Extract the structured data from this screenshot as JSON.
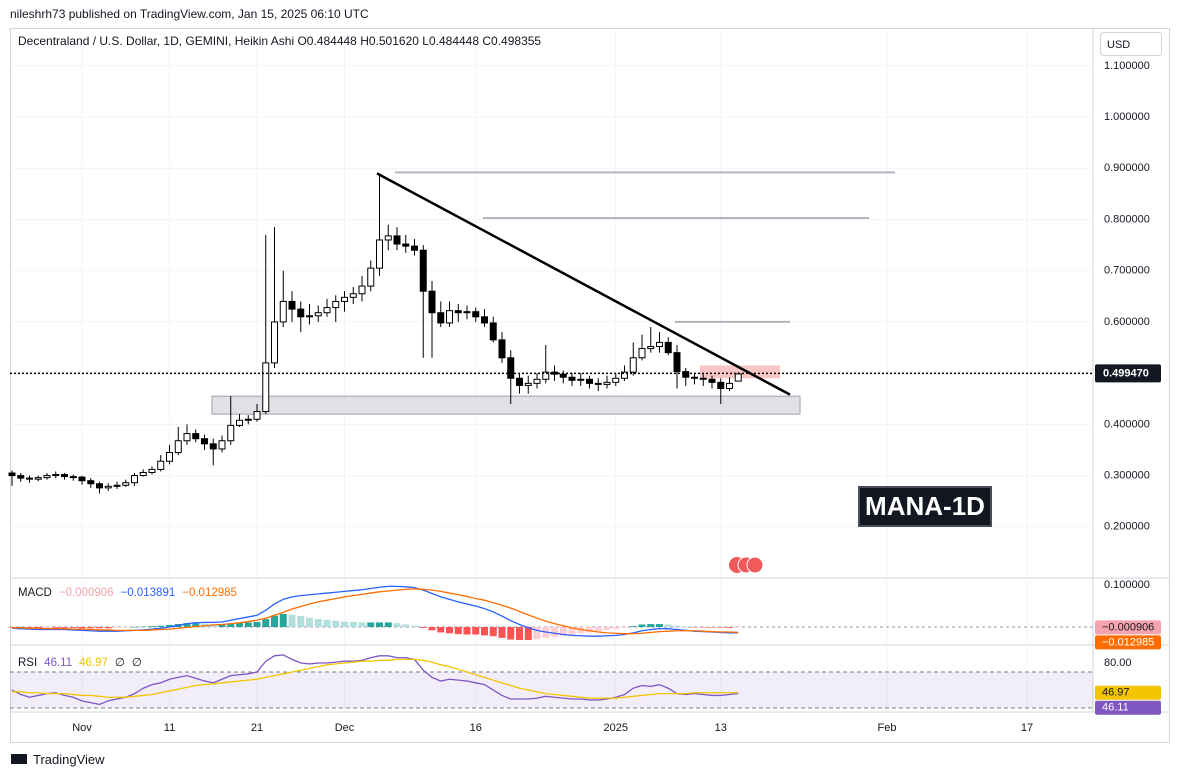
{
  "header": {
    "publisher": "nileshrh73 published on TradingView.com, Jan 15, 2025 06:10 UTC",
    "currency": "USD",
    "watermark": "MANA-1D",
    "brand": "TradingView"
  },
  "chart_data": [
    {
      "type": "candlestick",
      "title": "Decentraland / U.S. Dollar, 1D, GEMINI, Heikin Ashi",
      "header_labels": [
        "O",
        "H",
        "L",
        "C"
      ],
      "header_values": [
        0.484448,
        {
          "value": 0.50162,
          "label": "0.501620"
        },
        0.484448,
        0.498355
      ],
      "categories": [
        null,
        null,
        null,
        null,
        null,
        null,
        null,
        null,
        "Nov",
        null,
        null,
        null,
        null,
        null,
        null,
        null,
        null,
        null,
        "11",
        null,
        null,
        null,
        null,
        null,
        null,
        null,
        null,
        null,
        "21",
        null,
        null,
        null,
        null,
        null,
        null,
        null,
        null,
        null,
        "Dec",
        null,
        null,
        null,
        null,
        null,
        null,
        null,
        null,
        null,
        null,
        null,
        null,
        null,
        null,
        "16",
        null,
        null,
        null,
        null,
        null,
        null,
        null,
        null,
        null,
        null,
        null,
        null,
        null,
        null,
        null,
        "2025",
        null,
        null,
        null,
        null,
        null,
        null,
        null,
        null,
        null,
        null,
        null,
        "13",
        null,
        null,
        null,
        null,
        null,
        null,
        null,
        null,
        null,
        null,
        null,
        null,
        null,
        null,
        null,
        null,
        null,
        null,
        "Feb",
        null,
        null,
        null,
        null,
        null,
        null,
        null,
        null,
        null,
        null,
        null,
        null,
        null,
        null,
        null,
        "17",
        null,
        null,
        null,
        null,
        null,
        null,
        null
      ],
      "open": [
        0.305,
        0.3,
        0.295,
        0.293,
        0.296,
        0.3,
        0.302,
        0.298,
        0.297,
        0.29,
        0.284,
        0.276,
        0.279,
        0.281,
        0.286,
        0.3,
        0.306,
        0.312,
        0.328,
        0.345,
        0.368,
        0.382,
        0.372,
        0.362,
        0.352,
        0.368,
        0.398,
        0.408,
        0.41,
        0.425,
        0.52,
        0.6,
        0.64,
        0.625,
        0.61,
        0.612,
        0.618,
        0.628,
        0.64,
        0.648,
        0.655,
        0.67,
        0.705,
        0.76,
        0.768,
        0.752,
        0.748,
        0.74,
        0.66,
        0.618,
        0.598,
        0.622,
        0.618,
        0.62,
        0.61,
        0.598,
        0.565,
        0.53,
        0.49,
        0.476,
        0.48,
        0.488,
        0.502,
        0.498,
        0.492,
        0.486,
        0.488,
        0.48,
        0.478,
        0.482,
        0.49,
        0.502,
        0.53,
        0.548,
        0.552,
        0.56,
        0.54,
        0.503,
        0.492,
        0.49,
        0.488,
        0.482,
        0.47,
        0.484448,
        null,
        null,
        null,
        null,
        null,
        null,
        null,
        null,
        null,
        null,
        null,
        null,
        null,
        null,
        null,
        null,
        null,
        null,
        null,
        null,
        null,
        null,
        null,
        null,
        null,
        null,
        null,
        null,
        null,
        null,
        null,
        null,
        null,
        null,
        null,
        null,
        null,
        null,
        null,
        null
      ],
      "high": [
        0.31,
        0.305,
        0.3,
        0.3,
        0.305,
        0.308,
        0.305,
        0.302,
        0.3,
        0.295,
        0.288,
        0.285,
        0.288,
        0.292,
        0.305,
        0.312,
        0.318,
        0.34,
        0.36,
        0.395,
        0.4,
        0.39,
        0.38,
        0.372,
        0.378,
        0.455,
        0.42,
        0.418,
        0.44,
        0.77,
        0.785,
        0.7,
        0.66,
        0.64,
        0.635,
        0.632,
        0.645,
        0.652,
        0.66,
        0.668,
        0.69,
        0.72,
        0.89,
        0.79,
        0.785,
        0.77,
        0.762,
        0.75,
        0.68,
        0.64,
        0.64,
        0.635,
        0.632,
        0.628,
        0.625,
        0.61,
        0.58,
        0.545,
        0.5,
        0.495,
        0.5,
        0.555,
        0.515,
        0.505,
        0.5,
        0.5,
        0.495,
        0.49,
        0.495,
        0.5,
        0.515,
        0.56,
        0.575,
        0.59,
        0.58,
        0.57,
        0.555,
        0.51,
        0.5,
        0.498,
        0.495,
        0.49,
        0.492,
        0.50162,
        null,
        null,
        null,
        null,
        null,
        null,
        null,
        null,
        null,
        null,
        null,
        null,
        null,
        null,
        null,
        null,
        null,
        null,
        null,
        null,
        null,
        null,
        null,
        null,
        null,
        null,
        null,
        null,
        null,
        null,
        null,
        null,
        null,
        null,
        null,
        null,
        null,
        null,
        null,
        null
      ],
      "low": [
        0.28,
        0.288,
        0.286,
        0.289,
        0.292,
        0.295,
        0.292,
        0.29,
        0.282,
        0.276,
        0.265,
        0.27,
        0.274,
        0.278,
        0.28,
        0.298,
        0.302,
        0.308,
        0.322,
        0.34,
        0.36,
        0.365,
        0.35,
        0.32,
        0.345,
        0.36,
        0.395,
        0.4,
        0.405,
        0.42,
        0.51,
        0.59,
        0.6,
        0.58,
        0.595,
        0.6,
        0.61,
        0.6,
        0.62,
        0.635,
        0.64,
        0.66,
        0.69,
        0.74,
        0.74,
        0.735,
        0.73,
        0.53,
        0.53,
        0.59,
        0.59,
        0.6,
        0.605,
        0.6,
        0.59,
        0.56,
        0.52,
        0.44,
        0.46,
        0.46,
        0.47,
        0.48,
        0.485,
        0.48,
        0.475,
        0.475,
        0.47,
        0.465,
        0.47,
        0.475,
        0.485,
        0.495,
        0.525,
        0.54,
        0.54,
        0.535,
        0.47,
        0.475,
        0.478,
        0.475,
        0.47,
        0.44,
        0.465,
        0.484448,
        null,
        null,
        null,
        null,
        null,
        null,
        null,
        null,
        null,
        null,
        null,
        null,
        null,
        null,
        null,
        null,
        null,
        null,
        null,
        null,
        null,
        null,
        null,
        null,
        null,
        null,
        null,
        null,
        null,
        null,
        null,
        null,
        null,
        null,
        null,
        null,
        null,
        null,
        null,
        null
      ],
      "close": [
        0.3,
        0.295,
        0.293,
        0.296,
        0.3,
        0.302,
        0.298,
        0.297,
        0.29,
        0.284,
        0.276,
        0.279,
        0.281,
        0.286,
        0.3,
        0.306,
        0.312,
        0.328,
        0.345,
        0.368,
        0.382,
        0.372,
        0.362,
        0.352,
        0.368,
        0.398,
        0.408,
        0.41,
        0.425,
        0.52,
        0.6,
        0.64,
        0.625,
        0.61,
        0.612,
        0.618,
        0.628,
        0.64,
        0.648,
        0.655,
        0.67,
        0.705,
        0.76,
        0.768,
        0.752,
        0.748,
        0.74,
        0.66,
        0.618,
        0.598,
        0.622,
        0.618,
        0.62,
        0.61,
        0.598,
        0.565,
        0.53,
        0.49,
        0.476,
        0.48,
        0.488,
        0.502,
        0.498,
        0.492,
        0.486,
        0.488,
        0.48,
        0.478,
        0.482,
        0.49,
        0.502,
        0.53,
        0.548,
        0.552,
        0.56,
        0.54,
        0.503,
        0.492,
        0.49,
        0.488,
        0.482,
        0.47,
        0.48,
        0.498355,
        null,
        null,
        null,
        null,
        null,
        null,
        null,
        null,
        null,
        null,
        null,
        null,
        null,
        null,
        null,
        null,
        null,
        null,
        null,
        null,
        null,
        null,
        null,
        null,
        null,
        null,
        null,
        null,
        null,
        null,
        null,
        null,
        null,
        null,
        null,
        null,
        null,
        null,
        null,
        null
      ],
      "up_color": "#ffffff",
      "down_color": "#000000",
      "ylim": [
        0.1,
        1.17
      ],
      "yticks": [
        {
          "value": 1.1,
          "label": "1.100000"
        },
        {
          "value": 1.0,
          "label": "1.000000"
        },
        {
          "value": 0.9,
          "label": "0.900000"
        },
        {
          "value": 0.8,
          "label": "0.800000"
        },
        {
          "value": 0.7,
          "label": "0.700000"
        },
        {
          "value": 0.6,
          "label": "0.600000"
        },
        {
          "value": 0.4,
          "label": "0.400000"
        },
        {
          "value": 0.3,
          "label": "0.300000"
        },
        {
          "value": 0.2,
          "label": "0.200000"
        }
      ],
      "grid": true,
      "price_line": {
        "value": 0.49947,
        "label": "0.499470"
      },
      "trendline": [
        0.89,
        0.458
      ],
      "horizontal_lines": [
        0.892,
        0.803,
        0.6
      ],
      "support_zone": [
        0.42,
        0.455
      ],
      "resistance_box": [
        0.49,
        0.515
      ]
    },
    {
      "type": "macd",
      "name": "MACD",
      "ylim": [
        -0.043,
        0.117
      ],
      "yticks": [
        {
          "value": 0.1,
          "label": "0.100000"
        }
      ],
      "baseline": 0,
      "colors": [
        "#26a69a",
        "#b2dfdb",
        "#ff5252",
        "#ffcdd2"
      ],
      "series": [
        {
          "style": "histogram",
          "color": "#f5a3ad",
          "legend_label": "−0.000906",
          "values": [
            -0.001,
            -0.002,
            -0.002,
            -0.003,
            -0.002,
            -0.002,
            -0.002,
            -0.002,
            -0.003,
            -0.003,
            -0.003,
            -0.003,
            -0.002,
            -0.001,
            0.0,
            0.001,
            0.002,
            0.003,
            0.005,
            0.007,
            0.009,
            0.009,
            0.008,
            0.006,
            0.006,
            0.008,
            0.01,
            0.011,
            0.012,
            0.019,
            0.027,
            0.031,
            0.029,
            0.026,
            0.022,
            0.019,
            0.017,
            0.015,
            0.013,
            0.012,
            0.011,
            0.011,
            0.011,
            0.011,
            0.009,
            0.006,
            0.003,
            -0.002,
            -0.008,
            -0.013,
            -0.015,
            -0.017,
            -0.018,
            -0.018,
            -0.02,
            -0.022,
            -0.026,
            -0.03,
            -0.031,
            -0.031,
            -0.029,
            -0.026,
            -0.023,
            -0.021,
            -0.018,
            -0.015,
            -0.013,
            -0.01,
            -0.007,
            -0.005,
            -0.002,
            0.002,
            0.006,
            0.007,
            0.007,
            0.006,
            0.003,
            0.001,
            -0.001,
            -0.001,
            -0.001,
            -0.001,
            -0.002,
            -0.000906
          ]
        },
        {
          "style": "line",
          "color": "#2962ff",
          "legend_label": "−0.013891",
          "values": [
            -0.003,
            -0.004,
            -0.005,
            -0.006,
            -0.006,
            -0.006,
            -0.006,
            -0.007,
            -0.008,
            -0.009,
            -0.01,
            -0.01,
            -0.01,
            -0.009,
            -0.008,
            -0.007,
            -0.005,
            -0.003,
            0.0,
            0.004,
            0.008,
            0.01,
            0.011,
            0.011,
            0.012,
            0.016,
            0.02,
            0.024,
            0.028,
            0.04,
            0.055,
            0.066,
            0.072,
            0.075,
            0.077,
            0.079,
            0.081,
            0.083,
            0.085,
            0.087,
            0.089,
            0.092,
            0.095,
            0.097,
            0.097,
            0.096,
            0.094,
            0.088,
            0.08,
            0.072,
            0.066,
            0.06,
            0.055,
            0.05,
            0.044,
            0.036,
            0.026,
            0.015,
            0.006,
            -0.002,
            -0.008,
            -0.012,
            -0.015,
            -0.018,
            -0.02,
            -0.021,
            -0.022,
            -0.022,
            -0.021,
            -0.02,
            -0.018,
            -0.014,
            -0.009,
            -0.006,
            -0.004,
            -0.004,
            -0.006,
            -0.008,
            -0.01,
            -0.011,
            -0.012,
            -0.013,
            -0.014,
            -0.013891
          ]
        },
        {
          "style": "line",
          "color": "#ff6d00",
          "legend_label": "−0.012985",
          "values": [
            -0.002,
            -0.002,
            -0.003,
            -0.003,
            -0.004,
            -0.004,
            -0.004,
            -0.005,
            -0.005,
            -0.006,
            -0.007,
            -0.007,
            -0.008,
            -0.008,
            -0.008,
            -0.008,
            -0.007,
            -0.006,
            -0.005,
            -0.003,
            -0.001,
            0.001,
            0.003,
            0.005,
            0.006,
            0.008,
            0.01,
            0.013,
            0.016,
            0.021,
            0.028,
            0.035,
            0.043,
            0.049,
            0.055,
            0.06,
            0.064,
            0.068,
            0.072,
            0.075,
            0.078,
            0.081,
            0.084,
            0.086,
            0.088,
            0.09,
            0.091,
            0.09,
            0.088,
            0.085,
            0.081,
            0.077,
            0.073,
            0.068,
            0.064,
            0.058,
            0.052,
            0.045,
            0.037,
            0.029,
            0.021,
            0.014,
            0.008,
            0.003,
            -0.002,
            -0.006,
            -0.009,
            -0.012,
            -0.014,
            -0.015,
            -0.016,
            -0.016,
            -0.015,
            -0.013,
            -0.011,
            -0.01,
            -0.009,
            -0.009,
            -0.009,
            -0.01,
            -0.011,
            -0.012,
            -0.012,
            -0.012985
          ]
        }
      ]
    },
    {
      "type": "rsi",
      "name": "RSI",
      "ylim": [
        25.6,
        100
      ],
      "yticks": [
        {
          "value": 80,
          "label": "80.00"
        }
      ],
      "bands": [
        30,
        70
      ],
      "band_color": "#7e57c2",
      "legend_extra": [
        "∅",
        "∅"
      ],
      "series": [
        {
          "style": "line",
          "color": "#7e57c2",
          "legend_label": "46.11",
          "values": [
            50,
            45,
            42,
            44,
            46,
            47,
            44,
            42,
            38,
            36,
            34,
            38,
            40,
            42,
            46,
            52,
            56,
            58,
            62,
            64,
            66,
            63,
            60,
            58,
            62,
            66,
            67,
            68,
            70,
            82,
            88,
            89,
            84,
            80,
            79,
            80,
            80,
            81,
            82,
            82,
            83,
            86,
            88,
            88,
            86,
            86,
            84,
            72,
            64,
            60,
            62,
            61,
            60,
            58,
            56,
            50,
            44,
            40,
            40,
            40,
            41,
            43,
            42,
            41,
            40,
            40,
            39,
            39,
            40,
            42,
            45,
            52,
            55,
            54,
            56,
            52,
            46,
            45,
            46,
            45,
            44,
            44,
            45,
            46.11
          ]
        },
        {
          "style": "line",
          "color": "#f2c500",
          "legend_label": "46.97",
          "values": [
            48,
            48,
            47,
            47,
            46,
            46,
            46,
            45,
            44,
            44,
            43,
            42,
            42,
            42,
            43,
            44,
            45,
            47,
            49,
            51,
            53,
            55,
            56,
            57,
            58,
            59,
            60,
            61,
            62,
            64,
            66,
            68,
            70,
            72,
            74,
            76,
            78,
            79,
            80,
            81,
            82,
            82,
            83,
            83,
            84,
            84,
            84,
            83,
            81,
            78,
            76,
            73,
            70,
            67,
            64,
            61,
            58,
            55,
            52,
            50,
            48,
            46,
            45,
            44,
            43,
            42,
            41,
            41,
            41,
            41,
            42,
            43,
            44,
            45,
            46,
            46,
            46,
            46,
            47,
            47,
            47,
            47,
            47,
            46.97
          ]
        }
      ]
    }
  ]
}
